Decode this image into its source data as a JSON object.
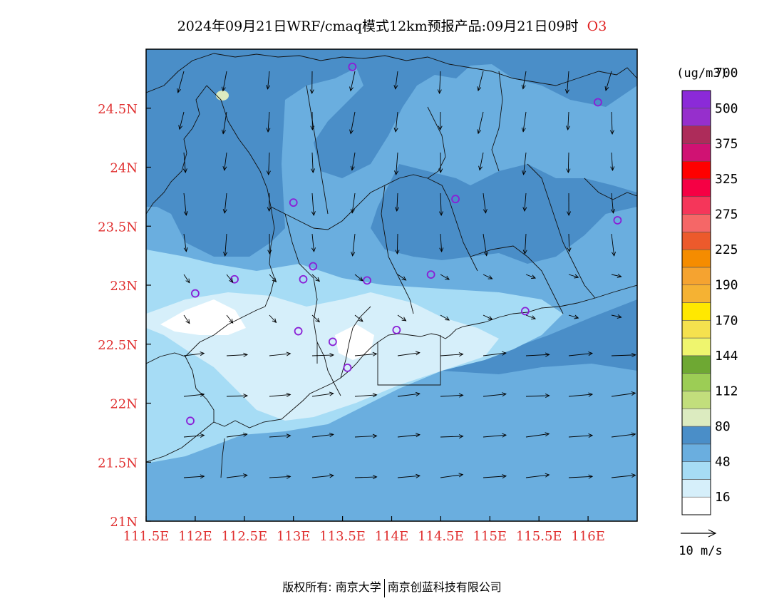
{
  "title": "2024年09月21日WRF/cmaq模式12km预报产品:09月21日09时",
  "species": "O3",
  "colorbar": {
    "unit": "(ug/m3)",
    "colors": [
      "#ffffff",
      "#d6effa",
      "#a6dcf5",
      "#6aaedf",
      "#4a8ec8",
      "#dcebc0",
      "#c2de7c",
      "#9ccd55",
      "#6ea833",
      "#eff56e",
      "#f5e14e",
      "#ffe800",
      "#f5b233",
      "#f5a330",
      "#f58c00",
      "#ec5a2c",
      "#f56767",
      "#f5365a",
      "#f50044",
      "#ff0000",
      "#d01273",
      "#ad2c5a",
      "#962fcc",
      "#8b2ad8"
    ],
    "labels": [
      {
        "index": 1,
        "text": "16"
      },
      {
        "index": 3,
        "text": "48"
      },
      {
        "index": 5,
        "text": "80"
      },
      {
        "index": 7,
        "text": "112"
      },
      {
        "index": 9,
        "text": "144"
      },
      {
        "index": 11,
        "text": "170"
      },
      {
        "index": 13,
        "text": "190"
      },
      {
        "index": 15,
        "text": "225"
      },
      {
        "index": 17,
        "text": "275"
      },
      {
        "index": 19,
        "text": "325"
      },
      {
        "index": 21,
        "text": "375"
      },
      {
        "index": 23,
        "text": "500"
      },
      {
        "index": 25,
        "text": "700"
      }
    ]
  },
  "wind_scale": {
    "label": "10 m/s"
  },
  "map": {
    "lon_range": [
      111.5,
      116.5
    ],
    "lat_range": [
      21.0,
      25.0
    ],
    "lon_ticks": [
      {
        "value": 111.5,
        "label": "111.5E"
      },
      {
        "value": 112,
        "label": "112E"
      },
      {
        "value": 112.5,
        "label": "112.5E"
      },
      {
        "value": 113,
        "label": "113E"
      },
      {
        "value": 113.5,
        "label": "113.5E"
      },
      {
        "value": 114,
        "label": "114E"
      },
      {
        "value": 114.5,
        "label": "114.5E"
      },
      {
        "value": 115,
        "label": "115E"
      },
      {
        "value": 115.5,
        "label": "115.5E"
      },
      {
        "value": 116,
        "label": "116E"
      }
    ],
    "lat_ticks": [
      {
        "value": 21,
        "label": "21N"
      },
      {
        "value": 21.5,
        "label": "21.5N"
      },
      {
        "value": 22,
        "label": "22N"
      },
      {
        "value": 22.5,
        "label": "22.5N"
      },
      {
        "value": 23,
        "label": "23N"
      },
      {
        "value": 23.5,
        "label": "23.5N"
      },
      {
        "value": 24,
        "label": "24N"
      },
      {
        "value": 24.5,
        "label": "24.5N"
      }
    ],
    "stations": [
      {
        "lon": 113.6,
        "lat": 24.85
      },
      {
        "lon": 116.1,
        "lat": 24.55
      },
      {
        "lon": 113.0,
        "lat": 23.7
      },
      {
        "lon": 114.65,
        "lat": 23.73
      },
      {
        "lon": 116.3,
        "lat": 23.55
      },
      {
        "lon": 112.4,
        "lat": 23.05
      },
      {
        "lon": 113.1,
        "lat": 23.05
      },
      {
        "lon": 113.2,
        "lat": 23.16
      },
      {
        "lon": 113.75,
        "lat": 23.04
      },
      {
        "lon": 114.4,
        "lat": 23.09
      },
      {
        "lon": 112.0,
        "lat": 22.93
      },
      {
        "lon": 115.36,
        "lat": 22.78
      },
      {
        "lon": 113.05,
        "lat": 22.61
      },
      {
        "lon": 113.4,
        "lat": 22.52
      },
      {
        "lon": 114.05,
        "lat": 22.62
      },
      {
        "lon": 113.55,
        "lat": 22.3
      },
      {
        "lon": 111.95,
        "lat": 21.85
      }
    ]
  },
  "copyright": {
    "prefix": "版权所有: ",
    "org1": "南京大学",
    "org2": "南京创蓝科技有限公司"
  }
}
